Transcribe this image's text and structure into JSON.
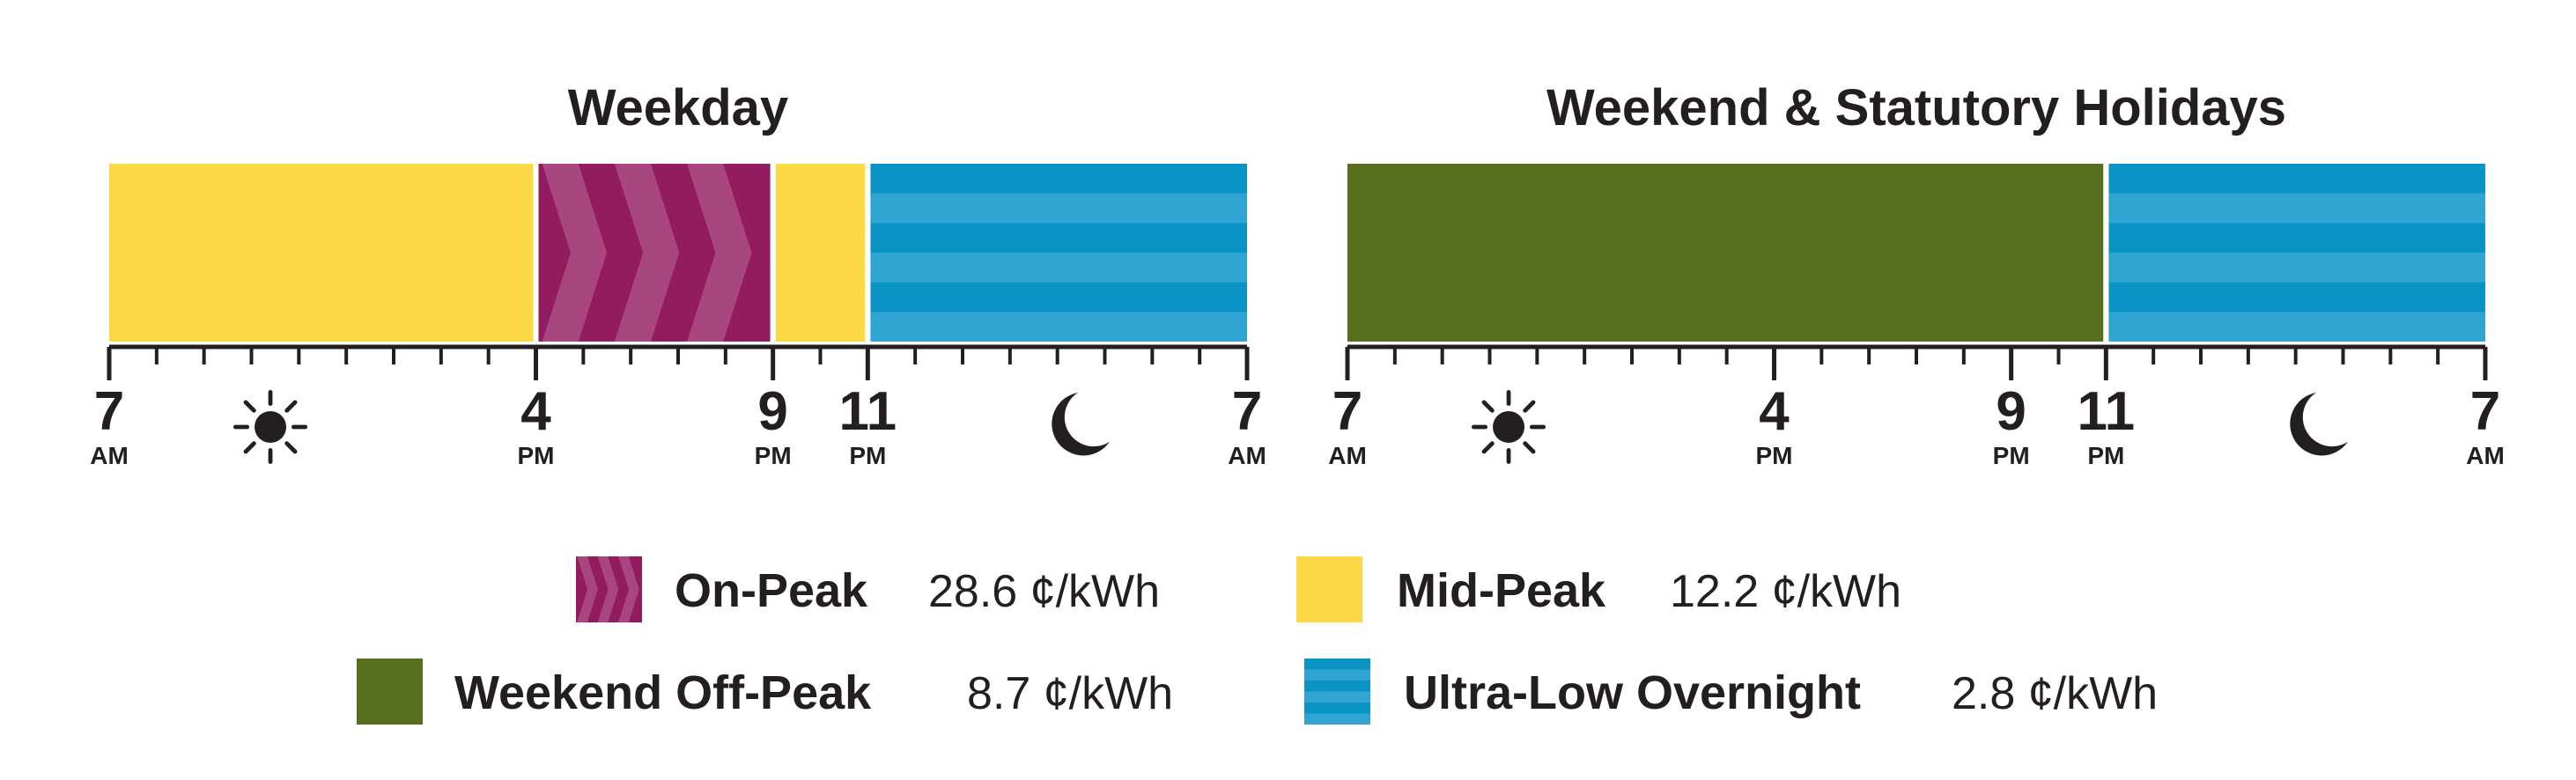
{
  "panels": [
    {
      "title": "Weekday",
      "ticks": [
        {
          "hour": "7",
          "period": "AM"
        },
        {
          "hour": "4",
          "period": "PM"
        },
        {
          "hour": "9",
          "period": "PM"
        },
        {
          "hour": "11",
          "period": "PM"
        },
        {
          "hour": "7",
          "period": "AM"
        }
      ]
    },
    {
      "title": "Weekend & Statutory Holidays",
      "ticks": [
        {
          "hour": "7",
          "period": "AM"
        },
        {
          "hour": "4",
          "period": "PM"
        },
        {
          "hour": "9",
          "period": "PM"
        },
        {
          "hour": "11",
          "period": "PM"
        },
        {
          "hour": "7",
          "period": "AM"
        }
      ]
    }
  ],
  "legend": [
    {
      "name": "On-Peak",
      "price": "28.6 ¢/kWh"
    },
    {
      "name": "Mid-Peak",
      "price": "12.2 ¢/kWh"
    },
    {
      "name": "Weekend Off-Peak",
      "price": "8.7 ¢/kWh"
    },
    {
      "name": "Ultra-Low Overnight",
      "price": "2.8 ¢/kWh"
    }
  ]
}
